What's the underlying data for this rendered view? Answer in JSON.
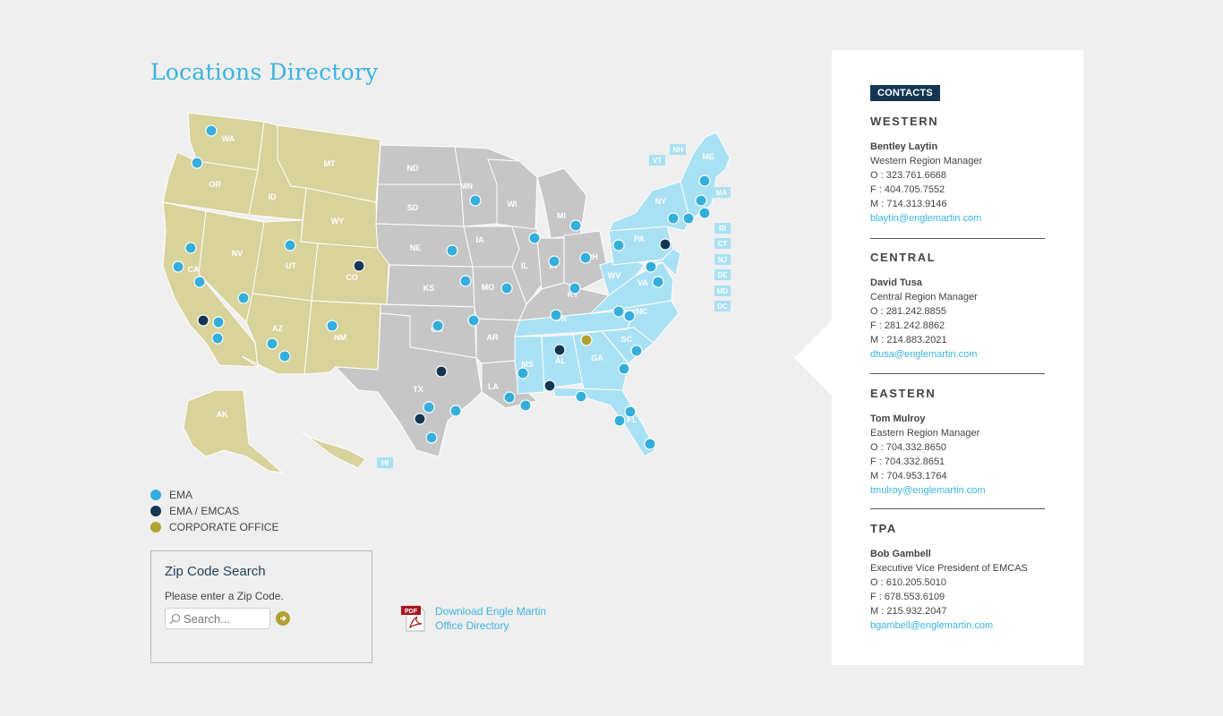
{
  "page": {
    "title": "Locations Directory"
  },
  "colors": {
    "western_region": "#d8d29b",
    "central_region": "#c6c6c6",
    "eastern_region": "#a9e1f4",
    "ema": "#34aedb",
    "ema_emcas": "#143652",
    "corporate_office": "#b1a032",
    "title_blue": "#3ab4e0"
  },
  "map": {
    "state_labels": [
      "WA",
      "OR",
      "CA",
      "NV",
      "ID",
      "MT",
      "WY",
      "UT",
      "CO",
      "AZ",
      "NM",
      "AK",
      "HI",
      "ND",
      "SD",
      "NE",
      "KS",
      "OK",
      "TX",
      "MN",
      "IA",
      "MO",
      "AR",
      "LA",
      "WI",
      "IL",
      "MI",
      "IN",
      "OH",
      "KY",
      "TN",
      "MS",
      "AL",
      "GA",
      "FL",
      "SC",
      "NC",
      "VA",
      "WV",
      "PA",
      "NY",
      "ME",
      "VT",
      "NH",
      "MA",
      "RI",
      "CT",
      "NJ",
      "DE",
      "MD",
      "DC"
    ],
    "small_state_tags": [
      "VT",
      "NH",
      "MA",
      "RI",
      "CT",
      "NJ",
      "DE",
      "MD",
      "DC",
      "HI"
    ]
  },
  "legend": {
    "items": [
      {
        "label": "EMA",
        "color": "#34aedb"
      },
      {
        "label": "EMA / EMCAS",
        "color": "#143652"
      },
      {
        "label": "CORPORATE OFFICE",
        "color": "#b1a032"
      }
    ]
  },
  "zip_search": {
    "title": "Zip Code Search",
    "prompt": "Please enter a Zip Code.",
    "placeholder": "Search...",
    "go_icon": "arrow-right-circle-icon"
  },
  "download": {
    "icon": "pdf-icon",
    "pdf_badge": "PDF",
    "label_line1": "Download Engle Martin",
    "label_line2": "Office Directory"
  },
  "contacts": {
    "badge": "CONTACTS",
    "regions": [
      {
        "name": "WESTERN",
        "person": "Bentley Laytin",
        "role": "Western Region Manager",
        "office": "O : 323.761.6668",
        "fax": "F : 404.705.7552",
        "mobile": "M : 714.313.9146",
        "email": "blaytin@englemartin.com"
      },
      {
        "name": "CENTRAL",
        "person": "David Tusa",
        "role": "Central Region Manager",
        "office": "O : 281.242.8855",
        "fax": "F : 281.242.8862",
        "mobile": "M : 214.883.2021",
        "email": "dtusa@englemartin.com"
      },
      {
        "name": "EASTERN",
        "person": "Tom Mulroy",
        "role": "Eastern Region Manager",
        "office": "O : 704.332.8650",
        "fax": "F : 704.332.8651",
        "mobile": "M : 704.953.1764",
        "email": "tmulroy@englemartin.com"
      },
      {
        "name": "TPA",
        "person": "Bob Gambell",
        "role": "Executive Vice President of EMCAS",
        "office": "O : 610.205.5010",
        "fax": "F : 678.553.6109",
        "mobile": "M : 215.932.2047",
        "email": "bgambell@englemartin.com"
      }
    ]
  }
}
